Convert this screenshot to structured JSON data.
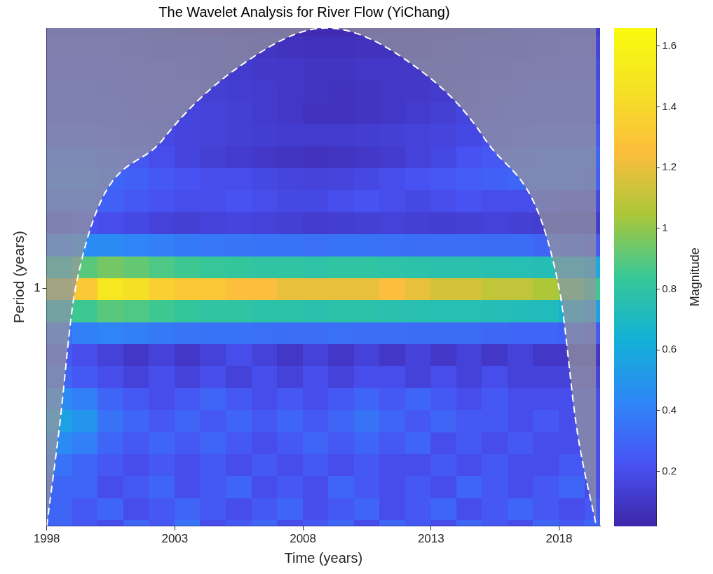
{
  "chart_data": {
    "type": "heatmap",
    "title": "The Wavelet Analysis for River Flow (YiChang)",
    "x_label": "Time (years)",
    "y_label": "Period (years)",
    "xlim": [
      1998,
      2019.6
    ],
    "xticks": [
      1998,
      2003,
      2008,
      2013,
      2018
    ],
    "ylim": [
      0.167,
      7.1
    ],
    "yticks": [
      1
    ],
    "log": "y",
    "grid": false,
    "x": [
      1998.5,
      1999.5,
      2000.5,
      2001.5,
      2002.5,
      2003.5,
      2004.5,
      2005.5,
      2006.5,
      2007.5,
      2008.5,
      2009.5,
      2010.5,
      2011.5,
      2012.5,
      2013.5,
      2014.5,
      2015.5,
      2016.5,
      2017.5,
      2018.5,
      2019.5
    ],
    "y": [
      0.162,
      0.191,
      0.225,
      0.266,
      0.314,
      0.37,
      0.437,
      0.516,
      0.609,
      0.718,
      0.847,
      1,
      1.18,
      1.392,
      1.643,
      1.939,
      2.288,
      2.7,
      3.185,
      3.759,
      4.435,
      5.234,
      6.176,
      7.288
    ],
    "cells": [
      [
        0.3,
        0.25,
        0.2,
        0.3,
        0.25,
        0.35,
        0.2,
        0.25,
        0.3,
        0.2,
        0.25,
        0.3,
        0.2,
        0.3,
        0.25,
        0.2,
        0.3,
        0.25,
        0.2,
        0.3,
        0.25,
        0.3
      ],
      [
        0.3,
        0.25,
        0.3,
        0.2,
        0.25,
        0.3,
        0.25,
        0.2,
        0.25,
        0.3,
        0.2,
        0.25,
        0.3,
        0.2,
        0.25,
        0.3,
        0.2,
        0.25,
        0.3,
        0.25,
        0.2,
        0.25
      ],
      [
        0.3,
        0.3,
        0.2,
        0.25,
        0.3,
        0.2,
        0.25,
        0.3,
        0.2,
        0.25,
        0.2,
        0.3,
        0.25,
        0.2,
        0.25,
        0.2,
        0.3,
        0.25,
        0.2,
        0.25,
        0.3,
        0.2
      ],
      [
        0.35,
        0.3,
        0.25,
        0.2,
        0.25,
        0.2,
        0.25,
        0.2,
        0.25,
        0.2,
        0.25,
        0.2,
        0.25,
        0.2,
        0.2,
        0.25,
        0.2,
        0.25,
        0.2,
        0.2,
        0.25,
        0.2
      ],
      [
        0.45,
        0.4,
        0.3,
        0.25,
        0.3,
        0.25,
        0.3,
        0.25,
        0.2,
        0.25,
        0.3,
        0.25,
        0.3,
        0.25,
        0.3,
        0.2,
        0.25,
        0.2,
        0.25,
        0.2,
        0.2,
        0.2
      ],
      [
        0.55,
        0.5,
        0.35,
        0.3,
        0.25,
        0.3,
        0.25,
        0.3,
        0.25,
        0.3,
        0.25,
        0.3,
        0.35,
        0.3,
        0.25,
        0.3,
        0.25,
        0.25,
        0.2,
        0.25,
        0.2,
        0.2
      ],
      [
        0.45,
        0.4,
        0.3,
        0.25,
        0.2,
        0.25,
        0.3,
        0.25,
        0.2,
        0.25,
        0.2,
        0.25,
        0.3,
        0.25,
        0.3,
        0.25,
        0.2,
        0.25,
        0.2,
        0.2,
        0.2,
        0.2
      ],
      [
        0.3,
        0.25,
        0.2,
        0.15,
        0.2,
        0.15,
        0.2,
        0.15,
        0.2,
        0.15,
        0.2,
        0.15,
        0.2,
        0.2,
        0.15,
        0.2,
        0.15,
        0.2,
        0.15,
        0.15,
        0.15,
        0.15
      ],
      [
        0.25,
        0.2,
        0.15,
        0.1,
        0.15,
        0.1,
        0.15,
        0.2,
        0.15,
        0.1,
        0.15,
        0.1,
        0.15,
        0.1,
        0.15,
        0.1,
        0.15,
        0.1,
        0.15,
        0.1,
        0.1,
        0.1
      ],
      [
        0.35,
        0.4,
        0.42,
        0.4,
        0.38,
        0.36,
        0.35,
        0.35,
        0.34,
        0.33,
        0.33,
        0.34,
        0.33,
        0.33,
        0.32,
        0.32,
        0.32,
        0.31,
        0.3,
        0.3,
        0.28,
        0.25
      ],
      [
        0.75,
        0.85,
        0.9,
        0.88,
        0.85,
        0.82,
        0.8,
        0.8,
        0.78,
        0.78,
        0.77,
        0.78,
        0.78,
        0.77,
        0.76,
        0.75,
        0.75,
        0.74,
        0.73,
        0.72,
        0.65,
        0.55
      ],
      [
        1.1,
        1.3,
        1.5,
        1.45,
        1.35,
        1.3,
        1.3,
        1.25,
        1.25,
        1.2,
        1.2,
        1.2,
        1.2,
        1.25,
        1.2,
        1.15,
        1.15,
        1.1,
        1.1,
        1.05,
        0.95,
        0.85
      ],
      [
        0.8,
        0.9,
        0.95,
        0.92,
        0.88,
        0.85,
        0.83,
        0.82,
        0.8,
        0.8,
        0.79,
        0.8,
        0.8,
        0.79,
        0.78,
        0.77,
        0.77,
        0.76,
        0.75,
        0.74,
        0.68,
        0.6
      ],
      [
        0.4,
        0.45,
        0.45,
        0.42,
        0.4,
        0.38,
        0.37,
        0.36,
        0.35,
        0.35,
        0.34,
        0.35,
        0.35,
        0.34,
        0.33,
        0.33,
        0.33,
        0.32,
        0.32,
        0.3,
        0.28,
        0.25
      ],
      [
        0.2,
        0.22,
        0.2,
        0.18,
        0.15,
        0.14,
        0.15,
        0.16,
        0.15,
        0.14,
        0.12,
        0.13,
        0.14,
        0.15,
        0.14,
        0.13,
        0.14,
        0.15,
        0.14,
        0.13,
        0.12,
        0.12
      ],
      [
        0.3,
        0.3,
        0.28,
        0.25,
        0.22,
        0.2,
        0.2,
        0.22,
        0.2,
        0.18,
        0.18,
        0.2,
        0.22,
        0.2,
        0.18,
        0.2,
        0.22,
        0.2,
        0.2,
        0.2,
        0.18,
        0.18
      ],
      [
        0.35,
        0.35,
        0.3,
        0.28,
        0.25,
        0.22,
        0.2,
        0.2,
        0.18,
        0.16,
        0.15,
        0.16,
        0.18,
        0.2,
        0.22,
        0.24,
        0.26,
        0.28,
        0.3,
        0.3,
        0.3,
        0.28
      ],
      [
        0.3,
        0.3,
        0.28,
        0.25,
        0.2,
        0.16,
        0.14,
        0.12,
        0.1,
        0.09,
        0.08,
        0.09,
        0.1,
        0.12,
        0.15,
        0.18,
        0.22,
        0.25,
        0.28,
        0.3,
        0.3,
        0.3
      ],
      [
        0.25,
        0.25,
        0.22,
        0.2,
        0.18,
        0.16,
        0.15,
        0.14,
        0.13,
        0.12,
        0.12,
        0.12,
        0.13,
        0.14,
        0.15,
        0.16,
        0.18,
        0.2,
        0.22,
        0.24,
        0.25,
        0.25
      ],
      [
        0.2,
        0.2,
        0.2,
        0.18,
        0.17,
        0.16,
        0.15,
        0.14,
        0.12,
        0.1,
        0.08,
        0.08,
        0.09,
        0.1,
        0.12,
        0.14,
        0.16,
        0.18,
        0.2,
        0.2,
        0.2,
        0.2
      ],
      [
        0.2,
        0.2,
        0.18,
        0.17,
        0.16,
        0.15,
        0.14,
        0.13,
        0.12,
        0.1,
        0.09,
        0.08,
        0.09,
        0.1,
        0.11,
        0.12,
        0.14,
        0.16,
        0.18,
        0.2,
        0.2,
        0.2
      ],
      [
        0.18,
        0.18,
        0.17,
        0.16,
        0.15,
        0.14,
        0.13,
        0.12,
        0.11,
        0.1,
        0.09,
        0.09,
        0.1,
        0.1,
        0.11,
        0.12,
        0.13,
        0.14,
        0.15,
        0.16,
        0.17,
        0.18
      ],
      [
        0.15,
        0.15,
        0.15,
        0.14,
        0.13,
        0.12,
        0.11,
        0.1,
        0.09,
        0.08,
        0.07,
        0.07,
        0.08,
        0.08,
        0.09,
        0.1,
        0.11,
        0.12,
        0.13,
        0.14,
        0.15,
        0.15
      ],
      [
        0.12,
        0.12,
        0.12,
        0.11,
        0.1,
        0.09,
        0.08,
        0.07,
        0.06,
        0.05,
        0.05,
        0.05,
        0.05,
        0.06,
        0.07,
        0.08,
        0.09,
        0.1,
        0.11,
        0.12,
        0.12,
        0.12
      ]
    ],
    "coi": {
      "x": [
        1998.0,
        1998.48,
        1999.12,
        2002.55,
        2005.5,
        2008.9,
        2012.4,
        2015.1,
        2018.0,
        2018.7,
        2019.45
      ],
      "values": [
        0.167,
        0.343,
        1,
        3.08,
        5.3,
        7.1,
        5.3,
        3.08,
        1,
        0.343,
        0.167
      ],
      "line_style": "dashed",
      "color": "#ffffff"
    },
    "colorbar_label": "Magnitude",
    "clim": [
      0.02,
      1.66
    ],
    "cticks": [
      0.2,
      0.4,
      0.6,
      0.8,
      1,
      1.2,
      1.4,
      1.6
    ]
  }
}
